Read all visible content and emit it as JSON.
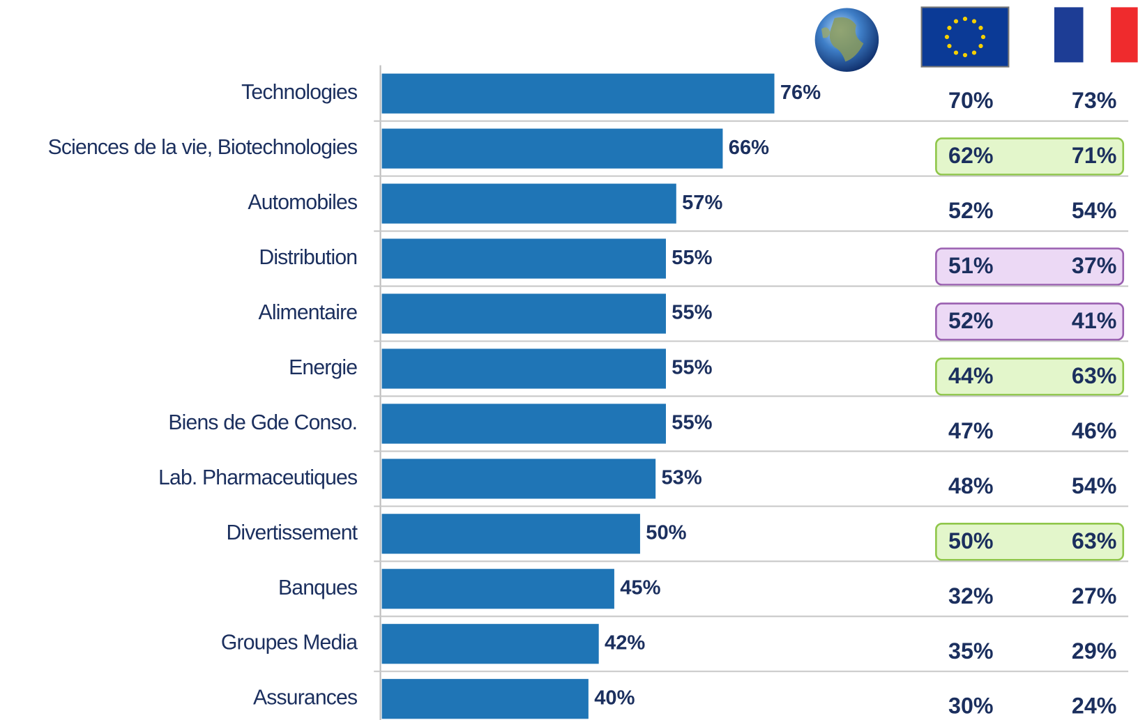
{
  "chart_data": {
    "type": "bar",
    "orientation": "horizontal",
    "categories": [
      "Technologies",
      "Sciences de la vie, Biotechnologies",
      "Automobiles",
      "Distribution",
      "Alimentaire",
      "Energie",
      "Biens de Gde Conso.",
      "Lab. Pharmaceutiques",
      "Divertissement",
      "Banques",
      "Groupes Media",
      "Assurances"
    ],
    "series": [
      {
        "color": "#1f75b6",
        "values": [
          76,
          66,
          57,
          55,
          55,
          55,
          55,
          53,
          50,
          45,
          42,
          40
        ],
        "value_labels": [
          "76%",
          "66%",
          "57%",
          "55%",
          "55%",
          "55%",
          "55%",
          "53%",
          "50%",
          "45%",
          "42%",
          "40%"
        ]
      }
    ],
    "xlim": [
      0,
      100
    ],
    "table_columns": [
      {
        "values": [
          70,
          62,
          52,
          51,
          52,
          44,
          47,
          48,
          50,
          32,
          35,
          30
        ],
        "value_labels": [
          "70%",
          "62%",
          "52%",
          "51%",
          "52%",
          "44%",
          "47%",
          "48%",
          "50%",
          "32%",
          "35%",
          "30%"
        ]
      },
      {
        "values": [
          73,
          71,
          54,
          37,
          41,
          63,
          46,
          54,
          63,
          27,
          29,
          24
        ],
        "value_labels": [
          "73%",
          "71%",
          "54%",
          "37%",
          "41%",
          "63%",
          "46%",
          "54%",
          "63%",
          "27%",
          "29%",
          "24%"
        ]
      }
    ],
    "row_highlights": [
      null,
      {
        "fill": "#e3f6cb",
        "stroke": "#8fc64a"
      },
      null,
      {
        "fill": "#ecd9f5",
        "stroke": "#9a5fb0"
      },
      {
        "fill": "#ecd9f5",
        "stroke": "#9a5fb0"
      },
      {
        "fill": "#e3f6cb",
        "stroke": "#8fc64a"
      },
      null,
      null,
      {
        "fill": "#e3f6cb",
        "stroke": "#8fc64a"
      },
      null,
      null,
      null
    ]
  }
}
